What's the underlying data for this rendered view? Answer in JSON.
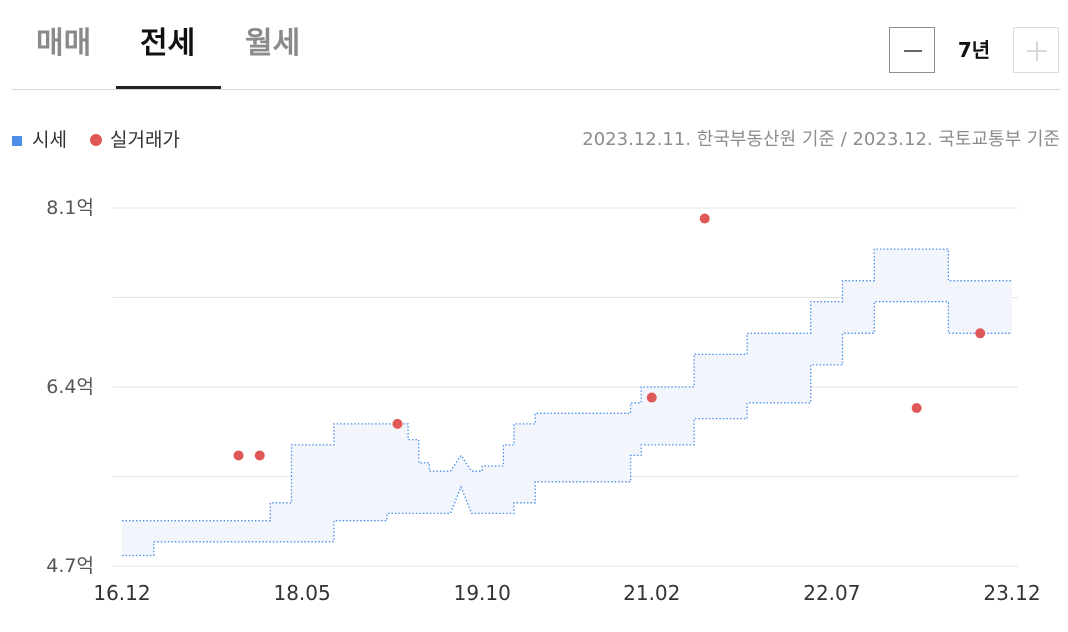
{
  "tabs": [
    {
      "label": "매매",
      "active": false
    },
    {
      "label": "전세",
      "active": true
    },
    {
      "label": "월세",
      "active": false
    }
  ],
  "period": {
    "value": "7년",
    "minus_icon": "minus-icon",
    "plus_icon": "plus-icon"
  },
  "legend": {
    "price_label": "시세",
    "price_color": "#4d8fe8",
    "deal_label": "실거래가",
    "deal_color": "#e05757"
  },
  "source_text": "2023.12.11. 한국부동산원 기준 / 2023.12. 국토교통부 기준",
  "chart_data": {
    "type": "area",
    "y_unit": "억",
    "ylim": [
      4.7,
      8.1
    ],
    "y_ticks": [
      4.7,
      6.4,
      8.1
    ],
    "y_tick_labels": [
      "4.7억",
      "6.4억",
      "8.1억"
    ],
    "y_grid": [
      4.7,
      5.55,
      6.4,
      7.25,
      8.1
    ],
    "x_range": [
      "2016-12",
      "2023-12"
    ],
    "x_ticks": [
      "2016-12",
      "2018-05",
      "2019-10",
      "2021-02",
      "2022-07",
      "2023-12"
    ],
    "x_tick_labels": [
      "16.12",
      "18.05",
      "19.10",
      "21.02",
      "22.07",
      "23.12"
    ],
    "series": [
      {
        "name": "시세",
        "kind": "band",
        "color": "#4d8fe8",
        "fill": "#f2f6fc",
        "upper": [
          [
            "2016-12",
            5.13
          ],
          [
            "2018-02",
            5.13
          ],
          [
            "2018-02",
            5.3
          ],
          [
            "2018-04",
            5.3
          ],
          [
            "2018-04",
            5.85
          ],
          [
            "2018-08",
            5.85
          ],
          [
            "2018-08",
            6.05
          ],
          [
            "2019-03",
            6.05
          ],
          [
            "2019-03",
            5.9
          ],
          [
            "2019-04",
            5.9
          ],
          [
            "2019-04",
            5.68
          ],
          [
            "2019-05",
            5.68
          ],
          [
            "2019-05",
            5.6
          ],
          [
            "2019-07",
            5.6
          ],
          [
            "2019-08",
            5.75
          ],
          [
            "2019-09",
            5.6
          ],
          [
            "2019-10",
            5.6
          ],
          [
            "2019-10",
            5.65
          ],
          [
            "2019-12",
            5.65
          ],
          [
            "2019-12",
            5.85
          ],
          [
            "2020-01",
            5.85
          ],
          [
            "2020-01",
            6.05
          ],
          [
            "2020-03",
            6.05
          ],
          [
            "2020-03",
            6.15
          ],
          [
            "2020-12",
            6.15
          ],
          [
            "2020-12",
            6.25
          ],
          [
            "2021-01",
            6.25
          ],
          [
            "2021-01",
            6.4
          ],
          [
            "2021-06",
            6.4
          ],
          [
            "2021-06",
            6.71
          ],
          [
            "2021-11",
            6.71
          ],
          [
            "2021-11",
            6.91
          ],
          [
            "2022-05",
            6.91
          ],
          [
            "2022-05",
            7.21
          ],
          [
            "2022-08",
            7.21
          ],
          [
            "2022-08",
            7.41
          ],
          [
            "2022-11",
            7.41
          ],
          [
            "2022-11",
            7.71
          ],
          [
            "2023-06",
            7.71
          ],
          [
            "2023-06",
            7.41
          ],
          [
            "2023-12",
            7.41
          ]
        ],
        "lower": [
          [
            "2016-12",
            4.8
          ],
          [
            "2017-03",
            4.8
          ],
          [
            "2017-03",
            4.93
          ],
          [
            "2018-08",
            4.93
          ],
          [
            "2018-08",
            5.13
          ],
          [
            "2019-01",
            5.13
          ],
          [
            "2019-01",
            5.2
          ],
          [
            "2019-07",
            5.2
          ],
          [
            "2019-08",
            5.45
          ],
          [
            "2019-09",
            5.2
          ],
          [
            "2020-01",
            5.2
          ],
          [
            "2020-01",
            5.3
          ],
          [
            "2020-03",
            5.3
          ],
          [
            "2020-03",
            5.5
          ],
          [
            "2020-12",
            5.5
          ],
          [
            "2020-12",
            5.75
          ],
          [
            "2021-01",
            5.75
          ],
          [
            "2021-01",
            5.85
          ],
          [
            "2021-06",
            5.85
          ],
          [
            "2021-06",
            6.1
          ],
          [
            "2021-11",
            6.1
          ],
          [
            "2021-11",
            6.25
          ],
          [
            "2022-05",
            6.25
          ],
          [
            "2022-05",
            6.61
          ],
          [
            "2022-08",
            6.61
          ],
          [
            "2022-08",
            6.91
          ],
          [
            "2022-11",
            6.91
          ],
          [
            "2022-11",
            7.21
          ],
          [
            "2023-06",
            7.21
          ],
          [
            "2023-06",
            6.91
          ],
          [
            "2023-12",
            6.91
          ]
        ]
      },
      {
        "name": "실거래가",
        "kind": "scatter",
        "color": "#e05757",
        "points": [
          [
            "2017-11",
            5.75
          ],
          [
            "2018-01",
            5.75
          ],
          [
            "2019-02",
            6.05
          ],
          [
            "2021-02",
            6.3
          ],
          [
            "2021-07",
            8.0
          ],
          [
            "2023-03",
            6.2
          ],
          [
            "2023-09",
            6.91
          ]
        ]
      }
    ]
  }
}
